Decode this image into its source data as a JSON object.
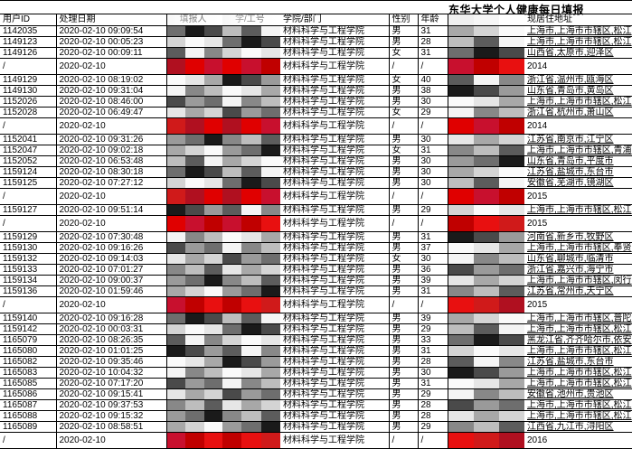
{
  "title": "东华大学个人健康每日填报",
  "columns": [
    "用户ID",
    "处理日期",
    "填报人",
    "学/工号",
    "学院/部门",
    "性别",
    "年龄",
    "",
    "现居住地址"
  ],
  "rows": [
    {
      "id": "1142035",
      "date": "2020-02-10 09:09:54",
      "dept": "材料科学与工程学院",
      "sex": "男",
      "age": "31",
      "addr": "上海市,上海市市辖区,松江"
    },
    {
      "id": "1149123",
      "date": "2020-02-10 00:05:23",
      "dept": "材料科学与工程学院",
      "sex": "男",
      "age": "28",
      "addr": "上海市,上海市市辖区,松江"
    },
    {
      "id": "1149126",
      "date": "2020-02-10 00:09:11",
      "dept": "材料科学与工程学院",
      "sex": "女",
      "age": "31",
      "addr": "山西省,太原市,迎泽区"
    },
    {
      "id": "/",
      "date": "2020-02-10",
      "dept": "材料科学与工程学院",
      "sex": "/",
      "age": "/",
      "addr": "2014"
    },
    {
      "id": "1149129",
      "date": "2020-02-10 08:19:02",
      "dept": "材料科学与工程学院",
      "sex": "女",
      "age": "40",
      "addr": "浙江省,温州市,瓯海区"
    },
    {
      "id": "1149130",
      "date": "2020-02-10 09:31:04",
      "dept": "材料科学与工程学院",
      "sex": "男",
      "age": "38",
      "addr": "山东省,青岛市,黄岛区"
    },
    {
      "id": "1152026",
      "date": "2020-02-10 08:46:00",
      "dept": "材料科学与工程学院",
      "sex": "男",
      "age": "30",
      "addr": "上海市,上海市市辖区,松江"
    },
    {
      "id": "1152028",
      "date": "2020-02-10 06:49:47",
      "dept": "材料科学与工程学院",
      "sex": "女",
      "age": "29",
      "addr": "浙江省,杭州市,萧山区"
    },
    {
      "id": "/",
      "date": "2020-02-10",
      "dept": "材料科学与工程学院",
      "sex": "/",
      "age": "/",
      "addr": "2014"
    },
    {
      "id": "1152041",
      "date": "2020-02-10 09:31:26",
      "dept": "材料科学与工程学院",
      "sex": "男",
      "age": "30",
      "addr": "江苏省,南京市,江宁区"
    },
    {
      "id": "1152047",
      "date": "2020-02-10 09:02:18",
      "dept": "材料科学与工程学院",
      "sex": "女",
      "age": "31",
      "addr": "上海市,上海市市辖区,青浦"
    },
    {
      "id": "1152052",
      "date": "2020-02-10 06:53:48",
      "dept": "材料科学与工程学院",
      "sex": "男",
      "age": "30",
      "addr": "山东省,青岛市,平度市"
    },
    {
      "id": "1159124",
      "date": "2020-02-10 08:30:18",
      "dept": "材料科学与工程学院",
      "sex": "男",
      "age": "30",
      "addr": "江苏省,盐城市,东台市"
    },
    {
      "id": "1159125",
      "date": "2020-02-10 07:27:12",
      "dept": "材料科学与工程学院",
      "sex": "男",
      "age": "30",
      "addr": "安徽省,芜湖市,镜湖区"
    },
    {
      "id": "/",
      "date": "2020-02-10",
      "dept": "材料科学与工程学院",
      "sex": "/",
      "age": "/",
      "addr": "2015"
    },
    {
      "id": "1159127",
      "date": "2020-02-10 09:51:14",
      "dept": "材料科学与工程学院",
      "sex": "男",
      "age": "29",
      "addr": "上海市,上海市市辖区,松江"
    },
    {
      "id": "/",
      "date": "2020-02-10",
      "dept": "材料科学与工程学院",
      "sex": "/",
      "age": "/",
      "addr": "2015"
    },
    {
      "id": "1159129",
      "date": "2020-02-10 07:30:48",
      "dept": "材料科学与工程学院",
      "sex": "男",
      "age": "31",
      "addr": "河南省,新乡市,牧野区"
    },
    {
      "id": "1159130",
      "date": "2020-02-10 09:16:26",
      "dept": "材料科学与工程学院",
      "sex": "男",
      "age": "37",
      "addr": "上海市,上海市市辖区,奉贤"
    },
    {
      "id": "1159132",
      "date": "2020-02-10 09:14:03",
      "dept": "材料科学与工程学院",
      "sex": "女",
      "age": "30",
      "addr": "山东省,聊城市,临清市"
    },
    {
      "id": "1159133",
      "date": "2020-02-10 07:01:27",
      "dept": "材料科学与工程学院",
      "sex": "男",
      "age": "36",
      "addr": "浙江省,嘉兴市,海宁市"
    },
    {
      "id": "1159134",
      "date": "2020-02-10 09:00:37",
      "dept": "材料科学与工程学院",
      "sex": "男",
      "age": "39",
      "addr": "上海市,上海市市辖区,闵行"
    },
    {
      "id": "1159136",
      "date": "2020-02-10 01:59:46",
      "dept": "材料科学与工程学院",
      "sex": "男",
      "age": "31",
      "addr": "江苏省,常州市,天宁区"
    },
    {
      "id": "/",
      "date": "2020-02-10",
      "dept": "材料科学与工程学院",
      "sex": "/",
      "age": "/",
      "addr": "2015"
    },
    {
      "id": "1159140",
      "date": "2020-02-10 09:16:28",
      "dept": "材料科学与工程学院",
      "sex": "男",
      "age": "39",
      "addr": "上海市,上海市市辖区,普陀"
    },
    {
      "id": "1159142",
      "date": "2020-02-10 00:03:31",
      "dept": "材料科学与工程学院",
      "sex": "男",
      "age": "29",
      "addr": "上海市,上海市市辖区,松江"
    },
    {
      "id": "1165079",
      "date": "2020-02-10 08:26:35",
      "dept": "材料科学与工程学院",
      "sex": "男",
      "age": "33",
      "addr": "黑龙江省,齐齐哈尔市,依安"
    },
    {
      "id": "1165080",
      "date": "2020-02-10 01:01:25",
      "dept": "材料科学与工程学院",
      "sex": "男",
      "age": "31",
      "addr": "上海市,上海市市辖区,松江"
    },
    {
      "id": "1165082",
      "date": "2020-02-10 09:35:46",
      "dept": "材料科学与工程学院",
      "sex": "男",
      "age": "28",
      "addr": "江苏省,盐城市,东台市"
    },
    {
      "id": "1165083",
      "date": "2020-02-10 10:04:32",
      "dept": "材料科学与工程学院",
      "sex": "男",
      "age": "30",
      "addr": "上海市,上海市市辖区,松江"
    },
    {
      "id": "1165085",
      "date": "2020-02-10 07:17:20",
      "dept": "材料科学与工程学院",
      "sex": "男",
      "age": "31",
      "addr": "上海市,上海市市辖区,松江"
    },
    {
      "id": "1165086",
      "date": "2020-02-10 09:15:41",
      "dept": "材料科学与工程学院",
      "sex": "男",
      "age": "29",
      "addr": "安徽省,池州市,贵池区"
    },
    {
      "id": "1165087",
      "date": "2020-02-10 09:37:53",
      "dept": "材料科学与工程学院",
      "sex": "男",
      "age": "28",
      "addr": "上海市,上海市市辖区,松江"
    },
    {
      "id": "1165088",
      "date": "2020-02-10 09:15:32",
      "dept": "材料科学与工程学院",
      "sex": "男",
      "age": "28",
      "addr": "上海市,上海市市辖区,松江"
    },
    {
      "id": "1165089",
      "date": "2020-02-10 08:58:51",
      "dept": "材料科学与工程学院",
      "sex": "男",
      "age": "29",
      "addr": "江西省,九江市,浔阳区"
    },
    {
      "id": "/",
      "date": "2020-02-10",
      "dept": "材料科学与工程学院",
      "sex": "/",
      "age": "/",
      "addr": "2016"
    }
  ]
}
